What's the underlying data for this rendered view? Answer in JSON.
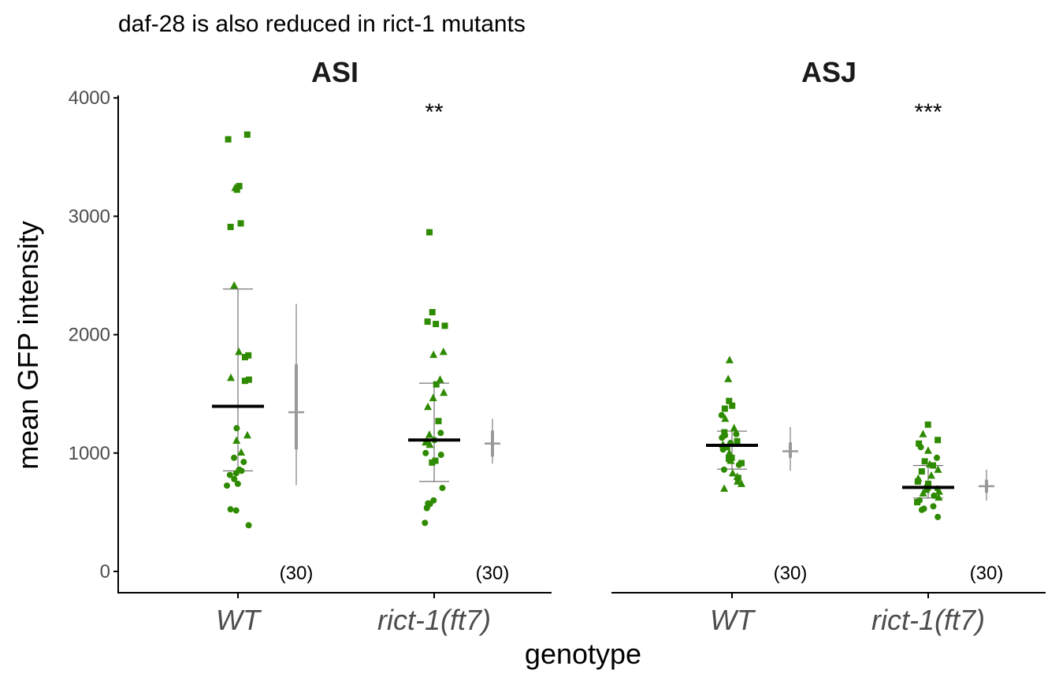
{
  "chart_data": {
    "type": "scatter",
    "title": "daf-28 is also reduced in rict-1 mutants",
    "xlabel": "genotype",
    "ylabel": "mean GFP intensity",
    "ylim": [
      -200,
      4000
    ],
    "yticks": [
      0,
      1000,
      2000,
      3000,
      4000
    ],
    "categories": [
      "WT",
      "rict-1(ft7)"
    ],
    "colors": {
      "points": "#2e8b00",
      "mean_bar": "#000000",
      "ci": "#999999",
      "axis": "#000000"
    },
    "panels": [
      {
        "name": "ASI",
        "groups": [
          {
            "genotype": "WT",
            "n_label": "(30)",
            "significance": "",
            "mean": 1395,
            "sd_low": 850,
            "sd_high": 2385,
            "ci_inner": [
              1030,
              1750
            ],
            "ci_outer": [
              730,
              2260
            ],
            "ci_center": 1345,
            "points": [
              {
                "y": 3690,
                "shape": "square"
              },
              {
                "y": 3650,
                "shape": "square"
              },
              {
                "y": 3255,
                "shape": "square"
              },
              {
                "y": 3240,
                "shape": "triangle"
              },
              {
                "y": 3225,
                "shape": "square"
              },
              {
                "y": 2940,
                "shape": "square"
              },
              {
                "y": 2910,
                "shape": "square"
              },
              {
                "y": 2415,
                "shape": "triangle"
              },
              {
                "y": 1855,
                "shape": "triangle"
              },
              {
                "y": 1825,
                "shape": "square"
              },
              {
                "y": 1810,
                "shape": "square"
              },
              {
                "y": 1635,
                "shape": "triangle"
              },
              {
                "y": 1620,
                "shape": "square"
              },
              {
                "y": 1610,
                "shape": "square"
              },
              {
                "y": 1210,
                "shape": "circle"
              },
              {
                "y": 1150,
                "shape": "triangle"
              },
              {
                "y": 1105,
                "shape": "triangle"
              },
              {
                "y": 1005,
                "shape": "triangle"
              },
              {
                "y": 960,
                "shape": "circle"
              },
              {
                "y": 925,
                "shape": "circle"
              },
              {
                "y": 860,
                "shape": "circle"
              },
              {
                "y": 850,
                "shape": "circle"
              },
              {
                "y": 830,
                "shape": "circle"
              },
              {
                "y": 815,
                "shape": "circle"
              },
              {
                "y": 780,
                "shape": "circle"
              },
              {
                "y": 740,
                "shape": "circle"
              },
              {
                "y": 725,
                "shape": "circle"
              },
              {
                "y": 525,
                "shape": "circle"
              },
              {
                "y": 515,
                "shape": "circle"
              },
              {
                "y": 390,
                "shape": "circle"
              }
            ]
          },
          {
            "genotype": "rict-1(ft7)",
            "n_label": "(30)",
            "significance": "**",
            "mean": 1110,
            "sd_low": 760,
            "sd_high": 1590,
            "ci_inner": [
              970,
              1190
            ],
            "ci_outer": [
              910,
              1290
            ],
            "ci_center": 1080,
            "points": [
              {
                "y": 2865,
                "shape": "square"
              },
              {
                "y": 2190,
                "shape": "square"
              },
              {
                "y": 2110,
                "shape": "square"
              },
              {
                "y": 2090,
                "shape": "square"
              },
              {
                "y": 2075,
                "shape": "square"
              },
              {
                "y": 1855,
                "shape": "triangle"
              },
              {
                "y": 1830,
                "shape": "triangle"
              },
              {
                "y": 1620,
                "shape": "triangle"
              },
              {
                "y": 1580,
                "shape": "square"
              },
              {
                "y": 1510,
                "shape": "triangle"
              },
              {
                "y": 1465,
                "shape": "triangle"
              },
              {
                "y": 1390,
                "shape": "triangle"
              },
              {
                "y": 1270,
                "shape": "square"
              },
              {
                "y": 1170,
                "shape": "circle"
              },
              {
                "y": 1155,
                "shape": "triangle"
              },
              {
                "y": 1110,
                "shape": "circle"
              },
              {
                "y": 1100,
                "shape": "circle"
              },
              {
                "y": 1090,
                "shape": "triangle"
              },
              {
                "y": 1070,
                "shape": "triangle"
              },
              {
                "y": 1000,
                "shape": "circle"
              },
              {
                "y": 985,
                "shape": "circle"
              },
              {
                "y": 935,
                "shape": "square"
              },
              {
                "y": 920,
                "shape": "square"
              },
              {
                "y": 705,
                "shape": "circle"
              },
              {
                "y": 600,
                "shape": "circle"
              },
              {
                "y": 575,
                "shape": "circle"
              },
              {
                "y": 570,
                "shape": "circle"
              },
              {
                "y": 540,
                "shape": "circle"
              },
              {
                "y": 535,
                "shape": "circle"
              },
              {
                "y": 410,
                "shape": "circle"
              }
            ]
          }
        ]
      },
      {
        "name": "ASJ",
        "groups": [
          {
            "genotype": "WT",
            "n_label": "(30)",
            "significance": "",
            "mean": 1065,
            "sd_low": 865,
            "sd_high": 1185,
            "ci_inner": [
              960,
              1090
            ],
            "ci_outer": [
              850,
              1220
            ],
            "ci_center": 1015,
            "points": [
              {
                "y": 1785,
                "shape": "triangle"
              },
              {
                "y": 1625,
                "shape": "triangle"
              },
              {
                "y": 1440,
                "shape": "square"
              },
              {
                "y": 1400,
                "shape": "square"
              },
              {
                "y": 1375,
                "shape": "square"
              },
              {
                "y": 1320,
                "shape": "circle"
              },
              {
                "y": 1290,
                "shape": "triangle"
              },
              {
                "y": 1210,
                "shape": "triangle"
              },
              {
                "y": 1175,
                "shape": "square"
              },
              {
                "y": 1160,
                "shape": "circle"
              },
              {
                "y": 1150,
                "shape": "circle"
              },
              {
                "y": 1130,
                "shape": "circle"
              },
              {
                "y": 1100,
                "shape": "square"
              },
              {
                "y": 1085,
                "shape": "circle"
              },
              {
                "y": 1070,
                "shape": "triangle"
              },
              {
                "y": 1050,
                "shape": "square"
              },
              {
                "y": 1030,
                "shape": "circle"
              },
              {
                "y": 1000,
                "shape": "triangle"
              },
              {
                "y": 960,
                "shape": "square"
              },
              {
                "y": 950,
                "shape": "square"
              },
              {
                "y": 935,
                "shape": "triangle"
              },
              {
                "y": 915,
                "shape": "square"
              },
              {
                "y": 900,
                "shape": "circle"
              },
              {
                "y": 860,
                "shape": "circle"
              },
              {
                "y": 830,
                "shape": "triangle"
              },
              {
                "y": 800,
                "shape": "triangle"
              },
              {
                "y": 790,
                "shape": "square"
              },
              {
                "y": 760,
                "shape": "triangle"
              },
              {
                "y": 740,
                "shape": "triangle"
              },
              {
                "y": 700,
                "shape": "triangle"
              }
            ]
          },
          {
            "genotype": "rict-1(ft7)",
            "n_label": "(30)",
            "significance": "***",
            "mean": 710,
            "sd_low": 620,
            "sd_high": 895,
            "ci_inner": [
              665,
              775
            ],
            "ci_outer": [
              600,
              860
            ],
            "ci_center": 720,
            "points": [
              {
                "y": 1240,
                "shape": "square"
              },
              {
                "y": 1160,
                "shape": "triangle"
              },
              {
                "y": 1110,
                "shape": "square"
              },
              {
                "y": 1080,
                "shape": "square"
              },
              {
                "y": 1050,
                "shape": "circle"
              },
              {
                "y": 1020,
                "shape": "triangle"
              },
              {
                "y": 960,
                "shape": "circle"
              },
              {
                "y": 930,
                "shape": "square"
              },
              {
                "y": 905,
                "shape": "triangle"
              },
              {
                "y": 895,
                "shape": "square"
              },
              {
                "y": 860,
                "shape": "triangle"
              },
              {
                "y": 845,
                "shape": "square"
              },
              {
                "y": 810,
                "shape": "triangle"
              },
              {
                "y": 785,
                "shape": "triangle"
              },
              {
                "y": 760,
                "shape": "square"
              },
              {
                "y": 740,
                "shape": "square"
              },
              {
                "y": 720,
                "shape": "circle"
              },
              {
                "y": 705,
                "shape": "square"
              },
              {
                "y": 700,
                "shape": "circle"
              },
              {
                "y": 690,
                "shape": "triangle"
              },
              {
                "y": 675,
                "shape": "triangle"
              },
              {
                "y": 660,
                "shape": "triangle"
              },
              {
                "y": 640,
                "shape": "circle"
              },
              {
                "y": 625,
                "shape": "triangle"
              },
              {
                "y": 600,
                "shape": "circle"
              },
              {
                "y": 585,
                "shape": "square"
              },
              {
                "y": 550,
                "shape": "circle"
              },
              {
                "y": 530,
                "shape": "circle"
              },
              {
                "y": 520,
                "shape": "circle"
              },
              {
                "y": 460,
                "shape": "circle"
              }
            ]
          }
        ]
      }
    ]
  }
}
